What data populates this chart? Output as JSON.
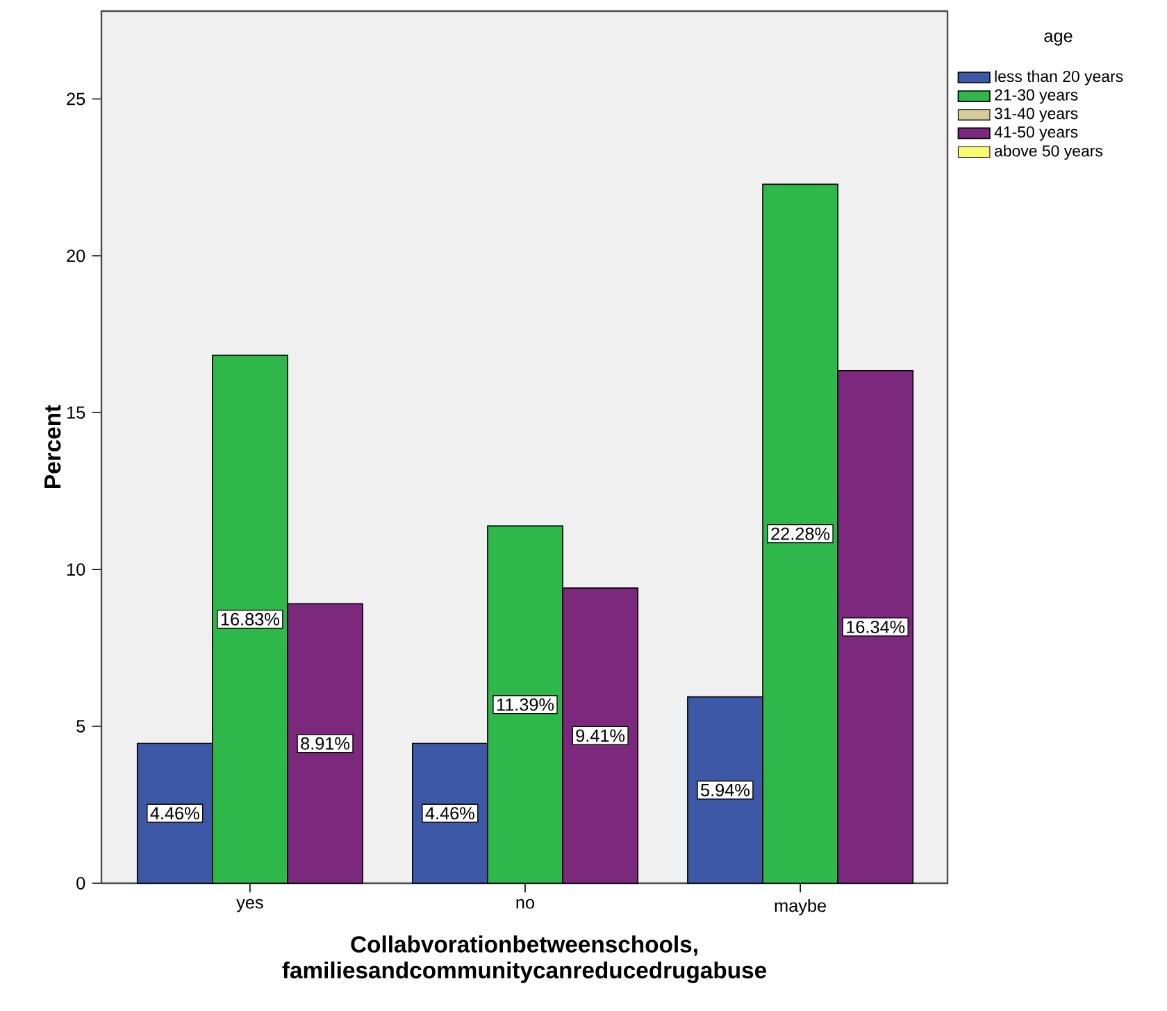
{
  "chart_data": {
    "type": "bar",
    "xlabel": "Collabvorationbetweenschools, familiesandcommunitycanreducedrugabuse",
    "ylabel": "Percent",
    "legend_title": "age",
    "categories": [
      "yes",
      "no",
      "maybe"
    ],
    "series": [
      {
        "name": "less than 20 years",
        "color": "#3e58a8",
        "values": [
          4.46,
          4.46,
          5.94
        ],
        "value_labels": [
          "4.46%",
          "4.46%",
          "5.94%"
        ]
      },
      {
        "name": "21-30 years",
        "color": "#2fb84a",
        "values": [
          16.83,
          11.39,
          22.28
        ],
        "value_labels": [
          "16.83%",
          "11.39%",
          "22.28%"
        ]
      },
      {
        "name": "31-40 years",
        "color": "#d4cc9a",
        "values": [
          null,
          null,
          null
        ]
      },
      {
        "name": "41-50 years",
        "color": "#7c287c",
        "values": [
          8.91,
          9.41,
          16.34
        ],
        "value_labels": [
          "8.91%",
          "9.41%",
          "16.34%"
        ]
      },
      {
        "name": "above 50 years",
        "color": "#fafa6e",
        "values": [
          null,
          null,
          null
        ]
      }
    ],
    "ylim": [
      0,
      27.8
    ],
    "yticks": [
      0,
      5,
      10,
      15,
      20,
      25
    ],
    "grid": false,
    "legend": "top right"
  }
}
